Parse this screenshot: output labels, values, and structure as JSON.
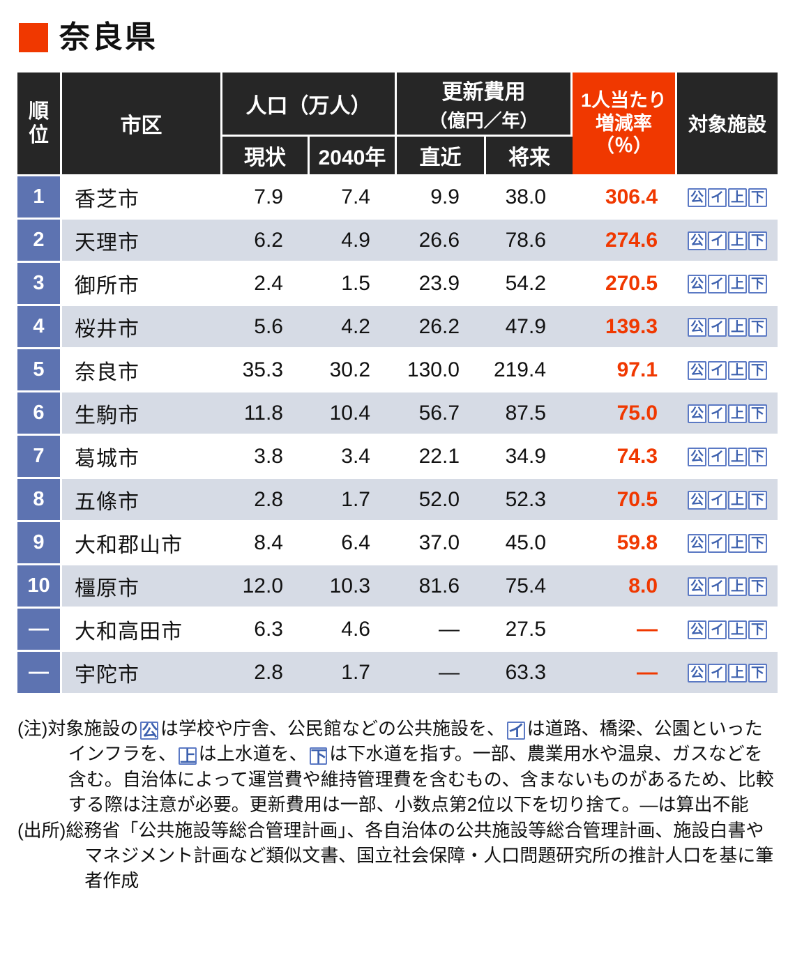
{
  "colors": {
    "accent": "#f03800",
    "rank_bg": "#5d73b1",
    "row_alt": "#d6dbe5",
    "header_bg": "#262626",
    "icon_text": "#3c60ae",
    "icon_border": "#5b79c4"
  },
  "chart_data": {
    "type": "table",
    "title": "奈良県",
    "header": {
      "rank": "順位",
      "city": "市区",
      "population_group": "人口（万人）",
      "population_current": "現状",
      "population_2040": "2040年",
      "cost_group_line1": "更新費用",
      "cost_group_line2": "（億円／年）",
      "cost_recent": "直近",
      "cost_future": "将来",
      "rate_lines": [
        "1人当たり",
        "増減率",
        "（％）"
      ],
      "facilities": "対象施設"
    },
    "rows": [
      {
        "rank": "1",
        "city": "香芝市",
        "pop_current": "7.9",
        "pop_2040": "7.4",
        "cost_recent": "9.9",
        "cost_future": "38.0",
        "rate": "306.4",
        "facilities": [
          "公",
          "イ",
          "上",
          "下"
        ]
      },
      {
        "rank": "2",
        "city": "天理市",
        "pop_current": "6.2",
        "pop_2040": "4.9",
        "cost_recent": "26.6",
        "cost_future": "78.6",
        "rate": "274.6",
        "facilities": [
          "公",
          "イ",
          "上",
          "下"
        ]
      },
      {
        "rank": "3",
        "city": "御所市",
        "pop_current": "2.4",
        "pop_2040": "1.5",
        "cost_recent": "23.9",
        "cost_future": "54.2",
        "rate": "270.5",
        "facilities": [
          "公",
          "イ",
          "上",
          "下"
        ]
      },
      {
        "rank": "4",
        "city": "桜井市",
        "pop_current": "5.6",
        "pop_2040": "4.2",
        "cost_recent": "26.2",
        "cost_future": "47.9",
        "rate": "139.3",
        "facilities": [
          "公",
          "イ",
          "上",
          "下"
        ]
      },
      {
        "rank": "5",
        "city": "奈良市",
        "pop_current": "35.3",
        "pop_2040": "30.2",
        "cost_recent": "130.0",
        "cost_future": "219.4",
        "rate": "97.1",
        "facilities": [
          "公",
          "イ",
          "上",
          "下"
        ]
      },
      {
        "rank": "6",
        "city": "生駒市",
        "pop_current": "11.8",
        "pop_2040": "10.4",
        "cost_recent": "56.7",
        "cost_future": "87.5",
        "rate": "75.0",
        "facilities": [
          "公",
          "イ",
          "上",
          "下"
        ]
      },
      {
        "rank": "7",
        "city": "葛城市",
        "pop_current": "3.8",
        "pop_2040": "3.4",
        "cost_recent": "22.1",
        "cost_future": "34.9",
        "rate": "74.3",
        "facilities": [
          "公",
          "イ",
          "上",
          "下"
        ]
      },
      {
        "rank": "8",
        "city": "五條市",
        "pop_current": "2.8",
        "pop_2040": "1.7",
        "cost_recent": "52.0",
        "cost_future": "52.3",
        "rate": "70.5",
        "facilities": [
          "公",
          "イ",
          "上",
          "下"
        ]
      },
      {
        "rank": "9",
        "city": "大和郡山市",
        "pop_current": "8.4",
        "pop_2040": "6.4",
        "cost_recent": "37.0",
        "cost_future": "45.0",
        "rate": "59.8",
        "facilities": [
          "公",
          "イ",
          "上",
          "下"
        ]
      },
      {
        "rank": "10",
        "city": "橿原市",
        "pop_current": "12.0",
        "pop_2040": "10.3",
        "cost_recent": "81.6",
        "cost_future": "75.4",
        "rate": "8.0",
        "facilities": [
          "公",
          "イ",
          "上",
          "下"
        ]
      },
      {
        "rank": "—",
        "city": "大和高田市",
        "pop_current": "6.3",
        "pop_2040": "4.6",
        "cost_recent": "—",
        "cost_future": "27.5",
        "rate": "—",
        "facilities": [
          "公",
          "イ",
          "上",
          "下"
        ]
      },
      {
        "rank": "—",
        "city": "宇陀市",
        "pop_current": "2.8",
        "pop_2040": "1.7",
        "cost_recent": "—",
        "cost_future": "63.3",
        "rate": "—",
        "facilities": [
          "公",
          "イ",
          "上",
          "下"
        ]
      }
    ]
  },
  "notes": [
    {
      "parts": [
        {
          "text": "(注)対象施設の"
        },
        {
          "icon": "公"
        },
        {
          "text": "は学校や庁舎、公民館などの公共施設を、"
        },
        {
          "icon": "イ"
        },
        {
          "text": "は道路、橋梁、公園といったインフラを、"
        },
        {
          "icon": "上"
        },
        {
          "text": "は上水道を、"
        },
        {
          "icon": "下"
        },
        {
          "text": "は下水道を指す。一部、農業用水や温泉、ガスなどを含む。自治体によって運営費や維持管理費を含むもの、含まないものがあるため、比較する際は注意が必要。更新費用は一部、小数点第2位以下を切り捨て。—は算出不能"
        }
      ]
    },
    {
      "parts": [
        {
          "text": "(出所)総務省「公共施設等総合管理計画」、各自治体の公共施設等総合管理計画、施設白書やマネジメント計画など類似文書、国立社会保障・人口問題研究所の推計人口を基に筆者作成"
        }
      ]
    }
  ]
}
